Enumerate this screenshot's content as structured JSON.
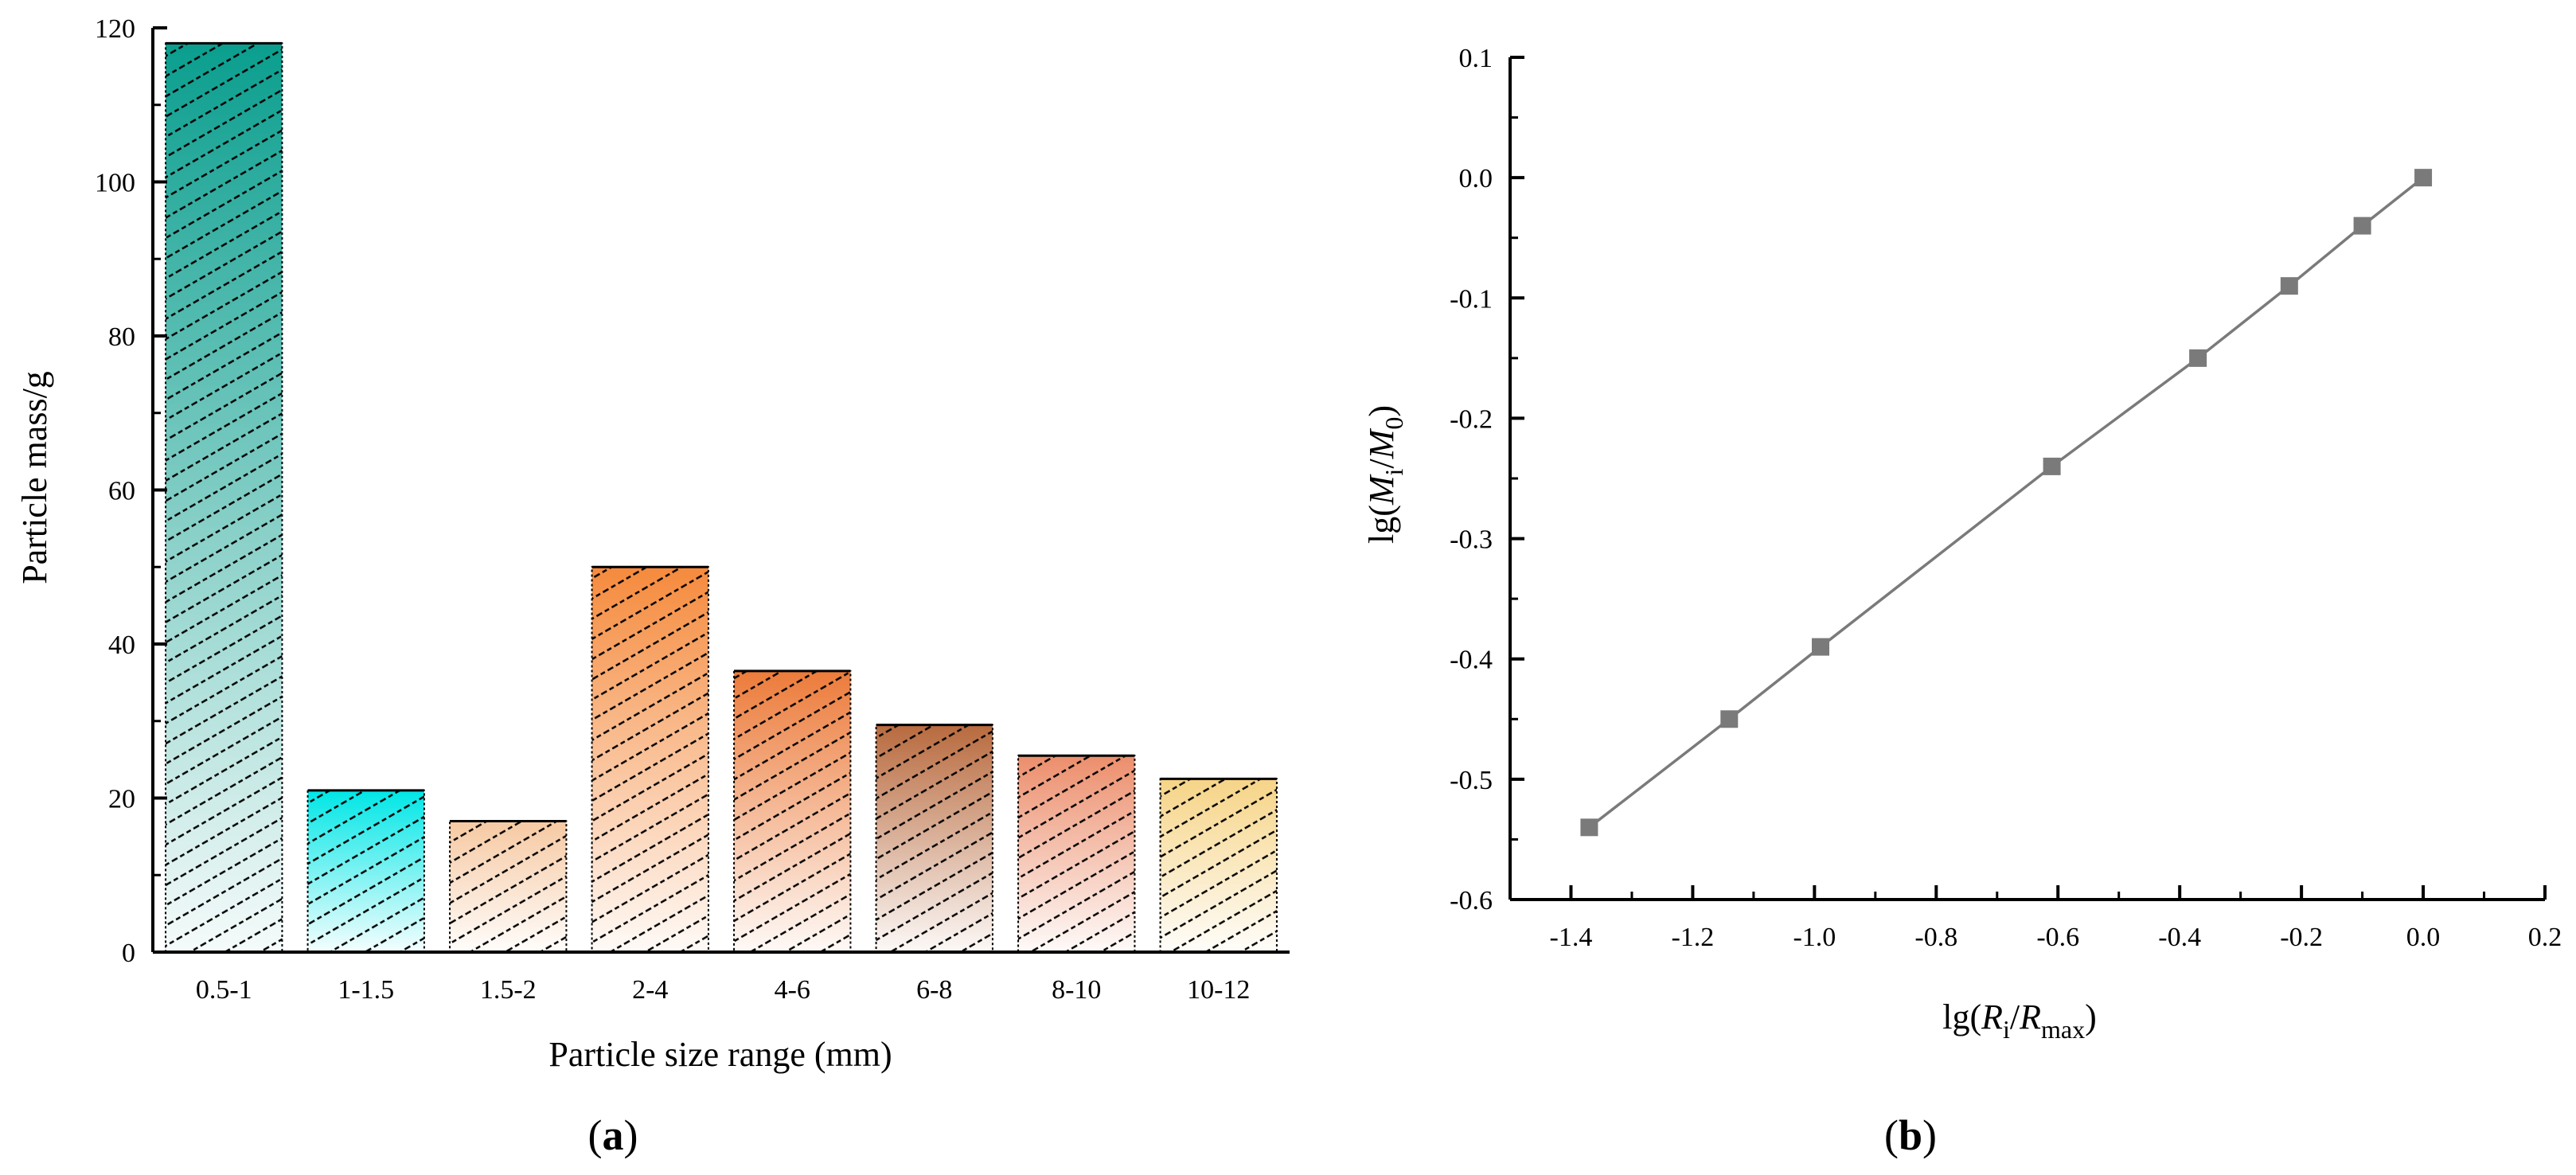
{
  "chart_data": [
    {
      "panel": "(a)",
      "panel_letter": "a",
      "type": "bar",
      "xlabel": "Particle size range (mm)",
      "ylabel": "Particle mass/g",
      "categories": [
        "0.5-1",
        "1-1.5",
        "1.5-2",
        "2-4",
        "4-6",
        "6-8",
        "8-10",
        "10-12"
      ],
      "values": [
        118,
        21,
        17,
        50,
        36.5,
        29.5,
        25.5,
        22.5
      ],
      "ylim": [
        0,
        120
      ],
      "yticks": [
        0,
        20,
        40,
        60,
        80,
        100,
        120
      ],
      "bar_colors": [
        "#0a9e8e",
        "#00e6e6",
        "#f6c9a2",
        "#f58a3c",
        "#ec7b3a",
        "#b86a3e",
        "#ec8e6c",
        "#f6d486"
      ],
      "hatch": "diagonal dashed"
    },
    {
      "panel": "(b)",
      "panel_letter": "b",
      "type": "line",
      "xlabel_parts": [
        "lg(",
        "R",
        "i",
        "/",
        "R",
        "max",
        ")"
      ],
      "ylabel_parts": [
        "lg(",
        "M",
        "i",
        "/",
        "M",
        "0",
        ")"
      ],
      "x": [
        -1.37,
        -1.14,
        -0.99,
        -0.61,
        -0.37,
        -0.22,
        -0.1,
        0.0
      ],
      "y": [
        -0.54,
        -0.45,
        -0.39,
        -0.24,
        -0.15,
        -0.09,
        -0.04,
        0.0
      ],
      "xlim": [
        -1.5,
        0.2
      ],
      "ylim": [
        -0.6,
        0.1
      ],
      "xticks": [
        -1.4,
        -1.2,
        -1.0,
        -0.8,
        -0.6,
        -0.4,
        -0.2,
        0.0,
        0.2
      ],
      "xtick_labels": [
        "-1.4",
        "-1.2",
        "-1.0",
        "-0.8",
        "-0.6",
        "-0.4",
        "-0.2",
        "0.0",
        "0.2"
      ],
      "yticks": [
        -0.6,
        -0.5,
        -0.4,
        -0.3,
        -0.2,
        -0.1,
        0.0,
        0.1
      ],
      "ytick_labels": [
        "-0.6",
        "-0.5",
        "-0.4",
        "-0.3",
        "-0.2",
        "-0.1",
        "0.0",
        "0.1"
      ],
      "series_color": "#7a7a7a",
      "marker": "square"
    }
  ]
}
